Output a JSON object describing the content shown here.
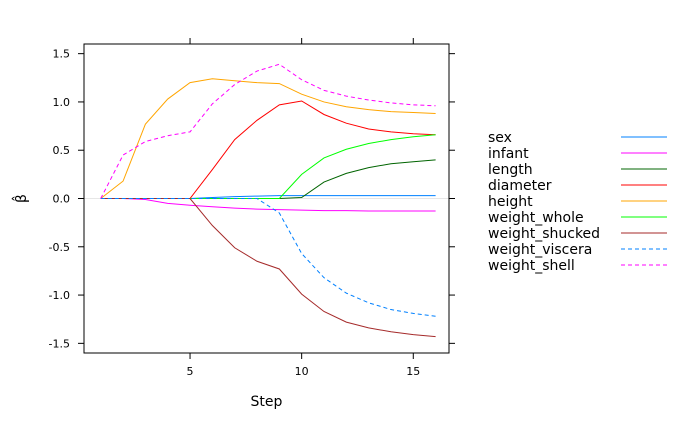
{
  "chart_data": {
    "type": "line",
    "xlabel": "Step",
    "ylabel": "β̂",
    "xlim": [
      0.25,
      16.6
    ],
    "ylim": [
      -1.6,
      1.6
    ],
    "x_ticks": [
      5,
      10,
      15
    ],
    "x_minor_ticks": [
      0,
      5,
      10,
      15
    ],
    "y_ticks": [
      -1.5,
      -1.0,
      -0.5,
      0.0,
      0.5,
      1.0,
      1.5
    ],
    "y_tick_labels": [
      "-1.5",
      "-1.0",
      "-0.5",
      "0.0",
      "0.5",
      "1.0",
      "1.5"
    ],
    "zero_line": true,
    "legend_position": "right",
    "x": [
      1,
      2,
      3,
      4,
      5,
      6,
      7,
      8,
      9,
      10,
      11,
      12,
      13,
      14,
      15,
      16
    ],
    "series": [
      {
        "name": "sex",
        "color": "#0080ff",
        "dash": "solid",
        "values": [
          0,
          0,
          0,
          0,
          0,
          0.01,
          0.02,
          0.025,
          0.03,
          0.03,
          0.03,
          0.03,
          0.03,
          0.03,
          0.03,
          0.03
        ]
      },
      {
        "name": "infant",
        "color": "#ff00ff",
        "dash": "solid",
        "values": [
          0,
          0,
          -0.01,
          -0.05,
          -0.07,
          -0.085,
          -0.1,
          -0.11,
          -0.115,
          -0.12,
          -0.125,
          -0.125,
          -0.13,
          -0.13,
          -0.13,
          -0.13
        ]
      },
      {
        "name": "length",
        "color": "#006400",
        "dash": "solid",
        "values": [
          0,
          0,
          0,
          0,
          0,
          0,
          0,
          0,
          0,
          0.01,
          0.17,
          0.26,
          0.32,
          0.36,
          0.38,
          0.4
        ]
      },
      {
        "name": "diameter",
        "color": "#ff0000",
        "dash": "solid",
        "values": [
          0,
          0,
          0,
          0,
          0,
          0.3,
          0.61,
          0.81,
          0.97,
          1.01,
          0.87,
          0.78,
          0.72,
          0.69,
          0.67,
          0.66
        ]
      },
      {
        "name": "height",
        "color": "#ffa500",
        "dash": "solid",
        "values": [
          0,
          0.18,
          0.77,
          1.03,
          1.2,
          1.24,
          1.22,
          1.2,
          1.19,
          1.08,
          1.0,
          0.95,
          0.92,
          0.9,
          0.89,
          0.88
        ]
      },
      {
        "name": "weight_whole",
        "color": "#00ff00",
        "dash": "solid",
        "values": [
          0,
          0,
          0,
          0,
          0,
          0,
          0,
          0,
          0,
          0.25,
          0.42,
          0.51,
          0.57,
          0.61,
          0.64,
          0.66
        ]
      },
      {
        "name": "weight_shucked",
        "color": "#a52a2a",
        "dash": "solid",
        "values": [
          0,
          0,
          0,
          0,
          0,
          -0.28,
          -0.51,
          -0.65,
          -0.73,
          -0.99,
          -1.17,
          -1.28,
          -1.34,
          -1.38,
          -1.41,
          -1.43
        ]
      },
      {
        "name": "weight_viscera",
        "color": "#0080ff",
        "dash": "dashed",
        "values": [
          0,
          0,
          0,
          0,
          0,
          0,
          0,
          0,
          -0.15,
          -0.57,
          -0.82,
          -0.98,
          -1.08,
          -1.15,
          -1.19,
          -1.22
        ]
      },
      {
        "name": "weight_shell",
        "color": "#ff00ff",
        "dash": "dashed",
        "values": [
          0,
          0.45,
          0.59,
          0.65,
          0.69,
          0.98,
          1.18,
          1.32,
          1.39,
          1.23,
          1.12,
          1.06,
          1.02,
          0.99,
          0.97,
          0.96
        ]
      }
    ]
  }
}
